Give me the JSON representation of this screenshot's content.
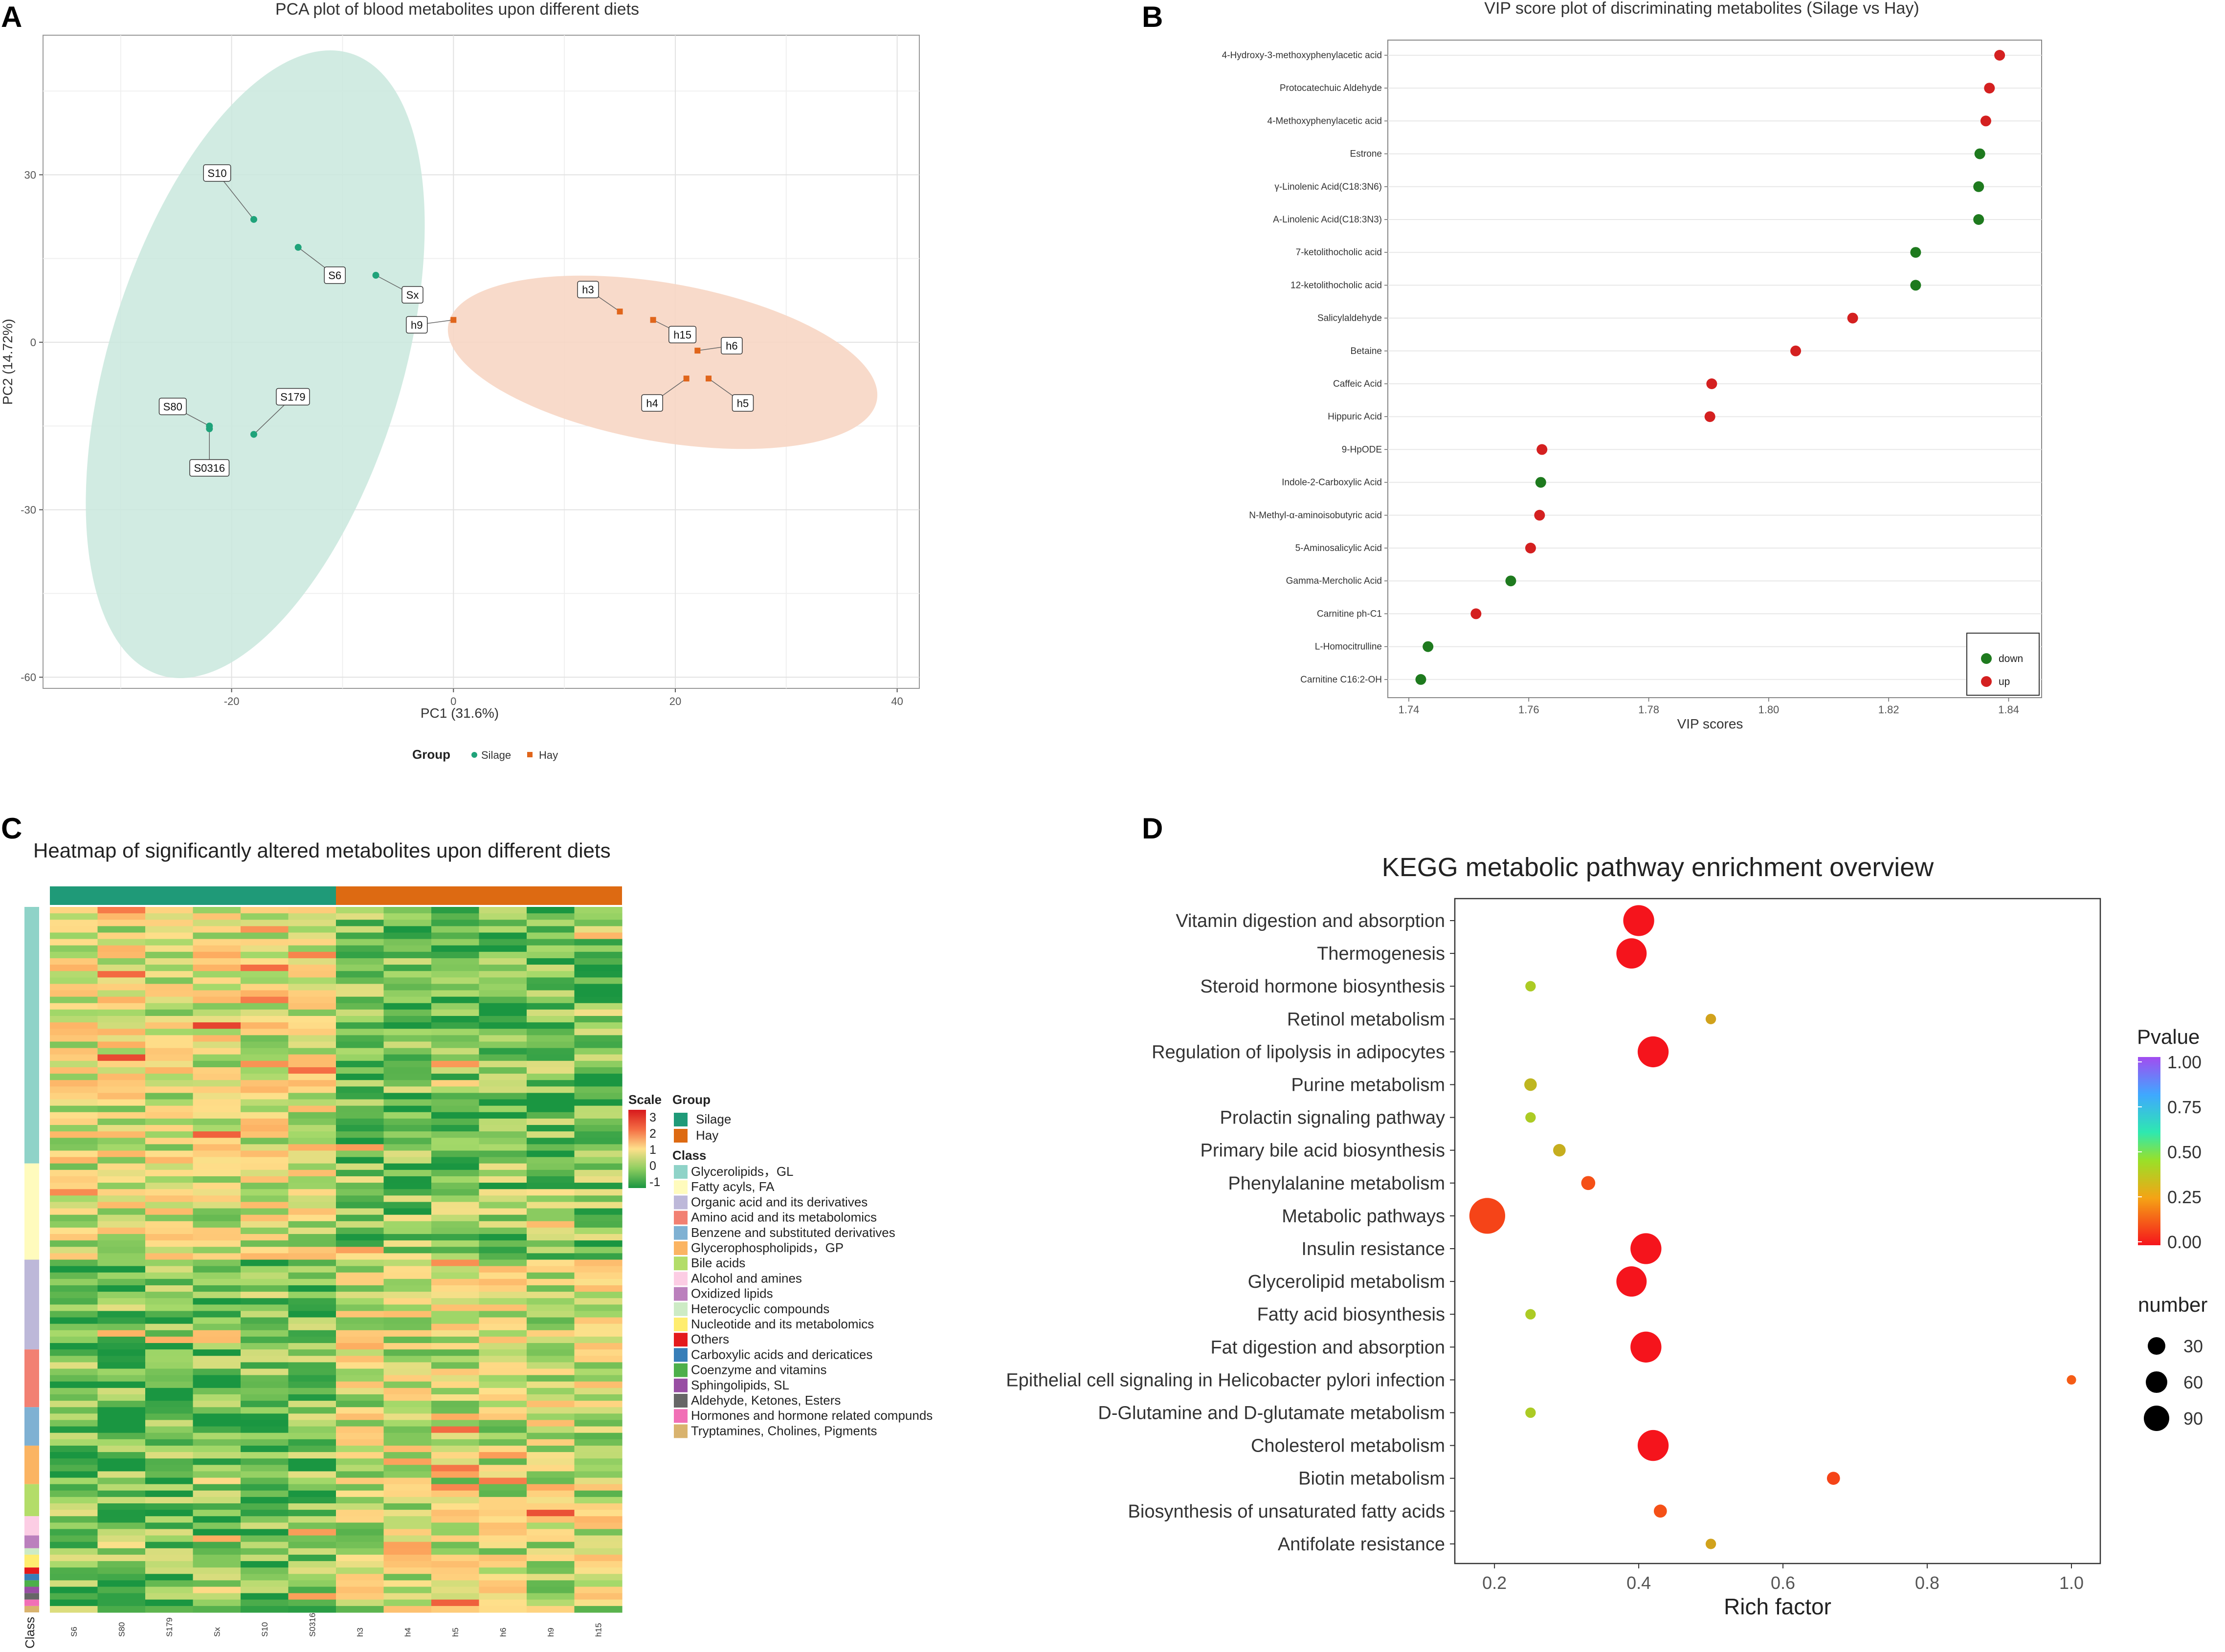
{
  "panels": {
    "a_label": "A",
    "b_label": "B",
    "c_label": "C",
    "d_label": "D"
  },
  "chart_data": [
    {
      "type": "scatter",
      "id": "pca",
      "title": "PCA plot of blood metabolites upon different  diets",
      "xlabel": "PC1 (31.6%)",
      "ylabel": "PC2 (14.72%)",
      "xlim": [
        -37,
        42
      ],
      "ylim": [
        -62,
        55
      ],
      "xticks": [
        -20,
        0,
        20,
        40
      ],
      "yticks": [
        30,
        0,
        -30,
        -60
      ],
      "xtick_labels": [
        "-20",
        "0",
        "20",
        "40"
      ],
      "ytick_labels": [
        "30",
        "0",
        "-30",
        "-60"
      ],
      "legend_title": "Group",
      "colors": {
        "Silage": "#1fa37a",
        "Hay": "#e0651b"
      },
      "series": [
        {
          "name": "Silage",
          "points": [
            {
              "label": "S10",
              "x": -18,
              "y": 22
            },
            {
              "label": "S6",
              "x": -14,
              "y": 17
            },
            {
              "label": "Sx",
              "x": -7,
              "y": 12
            },
            {
              "label": "S80",
              "x": -22,
              "y": -15
            },
            {
              "label": "S0316",
              "x": -22,
              "y": -15.5
            },
            {
              "label": "S179",
              "x": -18,
              "y": -16.5
            }
          ]
        },
        {
          "name": "Hay",
          "points": [
            {
              "label": "h9",
              "x": 0,
              "y": 4
            },
            {
              "label": "h3",
              "x": 15,
              "y": 5.5
            },
            {
              "label": "h15",
              "x": 18,
              "y": 4
            },
            {
              "label": "h6",
              "x": 22,
              "y": -1.5
            },
            {
              "label": "h4",
              "x": 21,
              "y": -6.5
            },
            {
              "label": "h5",
              "x": 23,
              "y": -6.5
            }
          ]
        }
      ]
    },
    {
      "type": "scatter",
      "id": "vip",
      "title": "VIP score plot of discriminating metabolites (Silage vs Hay)",
      "xlabel": "VIP scores",
      "xlim": [
        1.7365,
        1.8455
      ],
      "xticks": [
        1.74,
        1.76,
        1.78,
        1.8,
        1.82,
        1.84
      ],
      "xtick_labels": [
        "1.74",
        "1.76",
        "1.78",
        "1.80",
        "1.82",
        "1.84"
      ],
      "legend": [
        {
          "name": "down",
          "color": "#1e7a1e"
        },
        {
          "name": "up",
          "color": "#d42020"
        }
      ],
      "metabolites": [
        {
          "name": "4-Hydroxy-3-methoxyphenylacetic acid",
          "vip": 1.8385,
          "dir": "up"
        },
        {
          "name": "Protocatechuic Aldehyde",
          "vip": 1.8368,
          "dir": "up"
        },
        {
          "name": "4-Methoxyphenylacetic acid",
          "vip": 1.8362,
          "dir": "up"
        },
        {
          "name": "Estrone",
          "vip": 1.8352,
          "dir": "down"
        },
        {
          "name": "γ-Linolenic Acid(C18:3N6)",
          "vip": 1.835,
          "dir": "down"
        },
        {
          "name": "A-Linolenic Acid(C18:3N3)",
          "vip": 1.835,
          "dir": "down"
        },
        {
          "name": "7-ketolithocholic acid",
          "vip": 1.8245,
          "dir": "down"
        },
        {
          "name": "12-ketolithocholic acid",
          "vip": 1.8245,
          "dir": "down"
        },
        {
          "name": "Salicylaldehyde",
          "vip": 1.814,
          "dir": "up"
        },
        {
          "name": "Betaine",
          "vip": 1.8045,
          "dir": "up"
        },
        {
          "name": "Caffeic Acid",
          "vip": 1.7905,
          "dir": "up"
        },
        {
          "name": "Hippuric Acid",
          "vip": 1.7902,
          "dir": "up"
        },
        {
          "name": "9-HpODE",
          "vip": 1.7622,
          "dir": "up"
        },
        {
          "name": "Indole-2-Carboxylic Acid",
          "vip": 1.762,
          "dir": "down"
        },
        {
          "name": "N-Methyl-α-aminoisobutyric acid",
          "vip": 1.7618,
          "dir": "up"
        },
        {
          "name": "5-Aminosalicylic Acid",
          "vip": 1.7603,
          "dir": "up"
        },
        {
          "name": "Gamma-Mercholic Acid",
          "vip": 1.757,
          "dir": "down"
        },
        {
          "name": "Carnitine ph-C1",
          "vip": 1.7512,
          "dir": "up"
        },
        {
          "name": "L-Homocitrulline",
          "vip": 1.7432,
          "dir": "down"
        },
        {
          "name": "Carnitine C16:2-OH",
          "vip": 1.742,
          "dir": "down"
        }
      ]
    },
    {
      "type": "heatmap",
      "id": "heatmap",
      "title": "Heatmap of significantly altered metabolites upon different diets",
      "samples": [
        "S6",
        "S80",
        "S179",
        "Sx",
        "S10",
        "S0316",
        "h3",
        "h4",
        "h5",
        "h6",
        "h9",
        "h15"
      ],
      "groups": [
        {
          "name": "Silage",
          "color": "#1f9a78",
          "n": 6
        },
        {
          "name": "Hay",
          "color": "#dd6a12",
          "n": 6
        }
      ],
      "scale_title": "Scale",
      "scale_ticks": [
        "3",
        "2",
        "1",
        "0",
        "-1"
      ],
      "group_title": "Group",
      "class_title": "Class",
      "class_axis_label": "Class",
      "classes": [
        {
          "name": "Glycerolipids，GL",
          "color": "#8fd3c8",
          "rows": 40
        },
        {
          "name": "Fatty acyls, FA",
          "color": "#fffbbd",
          "rows": 15
        },
        {
          "name": "Organic acid and its derivatives",
          "color": "#bdb8d9",
          "rows": 14
        },
        {
          "name": "Amino acid and its metabolomics",
          "color": "#f28072",
          "rows": 9
        },
        {
          "name": "Benzene and substituted derivatives",
          "color": "#7fb1d3",
          "rows": 6
        },
        {
          "name": "Glycerophospholipids，GP",
          "color": "#fbb462",
          "rows": 6
        },
        {
          "name": "Bile acids",
          "color": "#b3dd69",
          "rows": 5
        },
        {
          "name": "Alcohol and amines",
          "color": "#fccde4",
          "rows": 3
        },
        {
          "name": "Oxidized lipids",
          "color": "#bb80bd",
          "rows": 2
        },
        {
          "name": "Heterocyclic compounds",
          "color": "#cdebc5",
          "rows": 1
        },
        {
          "name": "Nucleotide and its metabolomics",
          "color": "#ffed6f",
          "rows": 2
        },
        {
          "name": "Others",
          "color": "#e41a1c",
          "rows": 1
        },
        {
          "name": "Carboxylic acids and dericatices",
          "color": "#377eb8",
          "rows": 1
        },
        {
          "name": "Coenzyme and vitamins",
          "color": "#4daf4a",
          "rows": 1
        },
        {
          "name": "Sphingolipids, SL",
          "color": "#984ea3",
          "rows": 1
        },
        {
          "name": "Aldehyde, Ketones, Esters",
          "color": "#666666",
          "rows": 1
        },
        {
          "name": "Hormones and hormone related compunds",
          "color": "#f16fb6",
          "rows": 1
        },
        {
          "name": "Tryptamines, Cholines, Pigments",
          "color": "#d9b36e",
          "rows": 1
        }
      ]
    },
    {
      "type": "scatter",
      "id": "kegg",
      "title": "KEGG metabolic pathway enrichment overview",
      "xlabel": "Rich factor",
      "xlim": [
        0.145,
        1.04
      ],
      "xticks": [
        0.2,
        0.4,
        0.6,
        0.8,
        1.0
      ],
      "xtick_labels": [
        "0.2",
        "0.4",
        "0.6",
        "0.8",
        "1.0"
      ],
      "color_title": "Pvalue",
      "color_ticks": [
        "1.00",
        "0.75",
        "0.50",
        "0.25",
        "0.00"
      ],
      "size_title": "number",
      "size_ticks": [
        "30",
        "60",
        "90"
      ],
      "pathways": [
        {
          "name": "Vitamin digestion and absorption",
          "rich": 0.4,
          "number": 90,
          "pvalue": 0.0
        },
        {
          "name": "Thermogenesis",
          "rich": 0.39,
          "number": 85,
          "pvalue": 0.0
        },
        {
          "name": "Steroid hormone biosynthesis",
          "rich": 0.25,
          "number": 2,
          "pvalue": 0.45
        },
        {
          "name": "Retinol metabolism",
          "rich": 0.5,
          "number": 2,
          "pvalue": 0.35
        },
        {
          "name": "Regulation of lipolysis in adipocytes",
          "rich": 0.42,
          "number": 90,
          "pvalue": 0.0
        },
        {
          "name": "Purine metabolism",
          "rich": 0.25,
          "number": 5,
          "pvalue": 0.4
        },
        {
          "name": "Prolactin signaling pathway",
          "rich": 0.25,
          "number": 2,
          "pvalue": 0.45
        },
        {
          "name": "Primary bile acid biosynthesis",
          "rich": 0.29,
          "number": 5,
          "pvalue": 0.38
        },
        {
          "name": "Phenylalanine metabolism",
          "rich": 0.33,
          "number": 8,
          "pvalue": 0.15
        },
        {
          "name": "Metabolic pathways",
          "rich": 0.19,
          "number": 130,
          "pvalue": 0.12
        },
        {
          "name": "Insulin resistance",
          "rich": 0.41,
          "number": 90,
          "pvalue": 0.0
        },
        {
          "name": "Glycerolipid metabolism",
          "rich": 0.39,
          "number": 85,
          "pvalue": 0.0
        },
        {
          "name": "Fatty acid biosynthesis",
          "rich": 0.25,
          "number": 2,
          "pvalue": 0.45
        },
        {
          "name": "Fat digestion and absorption",
          "rich": 0.41,
          "number": 90,
          "pvalue": 0.0
        },
        {
          "name": "Epithelial cell signaling in Helicobacter pylori infection",
          "rich": 1.0,
          "number": 1,
          "pvalue": 0.18
        },
        {
          "name": "D-Glutamine and D-glutamate metabolism",
          "rich": 0.25,
          "number": 2,
          "pvalue": 0.45
        },
        {
          "name": "Cholesterol metabolism",
          "rich": 0.42,
          "number": 90,
          "pvalue": 0.0
        },
        {
          "name": "Biotin metabolism",
          "rich": 0.67,
          "number": 6,
          "pvalue": 0.12
        },
        {
          "name": "Biosynthesis of unsaturated fatty acids",
          "rich": 0.43,
          "number": 6,
          "pvalue": 0.15
        },
        {
          "name": "Antifolate resistance",
          "rich": 0.5,
          "number": 2,
          "pvalue": 0.35
        }
      ]
    }
  ]
}
